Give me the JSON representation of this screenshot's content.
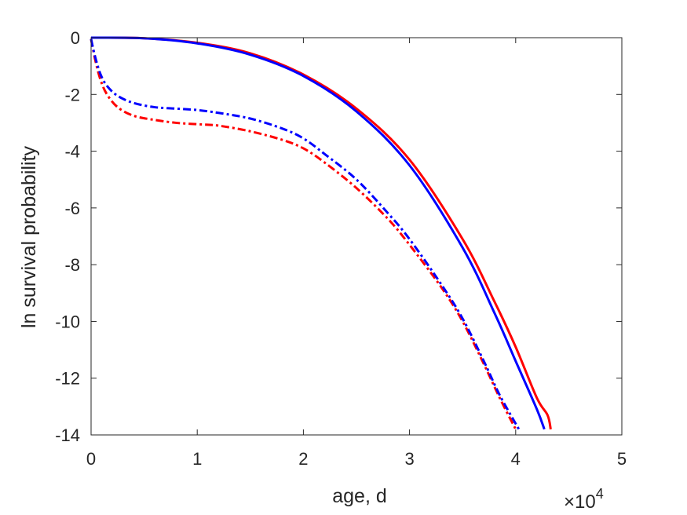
{
  "chart_data": {
    "type": "line",
    "xlabel": "age, d",
    "ylabel": "ln survival probability",
    "x_exponent": {
      "base": "×10",
      "power": "4"
    },
    "xlim": [
      0,
      50000
    ],
    "ylim": [
      -14,
      0
    ],
    "xticks": [
      0,
      10000,
      20000,
      30000,
      40000,
      50000
    ],
    "xtick_labels": [
      "0",
      "1",
      "2",
      "3",
      "4",
      "5"
    ],
    "yticks": [
      0,
      -2,
      -4,
      -6,
      -8,
      -10,
      -12,
      -14
    ],
    "ytick_labels": [
      "0",
      "-2",
      "-4",
      "-6",
      "-8",
      "-10",
      "-12",
      "-14"
    ],
    "grid": false,
    "series": [
      {
        "color": "#ff0000",
        "style": "solid",
        "x": [
          0,
          5000,
          10000,
          15000,
          20000,
          25000,
          30000,
          35000,
          38000,
          40000,
          42000,
          43000,
          43300
        ],
        "y": [
          0,
          -0.02,
          -0.18,
          -0.55,
          -1.3,
          -2.5,
          -4.3,
          -7.1,
          -9.3,
          -10.9,
          -12.7,
          -13.3,
          -13.8
        ]
      },
      {
        "color": "#0000ff",
        "style": "solid",
        "x": [
          0,
          5000,
          10000,
          15000,
          20000,
          25000,
          30000,
          35000,
          38000,
          40000,
          42000,
          42700
        ],
        "y": [
          0,
          -0.02,
          -0.2,
          -0.6,
          -1.35,
          -2.6,
          -4.5,
          -7.4,
          -9.7,
          -11.4,
          -13.1,
          -13.8
        ]
      },
      {
        "color": "#ff0000",
        "style": "dash-dot",
        "x": [
          0,
          400,
          900,
          1500,
          2500,
          4000,
          6000,
          8000,
          10000,
          12000,
          15000,
          18000,
          20000,
          22000,
          25000,
          28000,
          30000,
          33000,
          35000,
          37000,
          38500,
          40000
        ],
        "y": [
          -0.05,
          -0.8,
          -1.5,
          -2.0,
          -2.45,
          -2.75,
          -2.9,
          -3.0,
          -3.05,
          -3.1,
          -3.3,
          -3.6,
          -3.9,
          -4.4,
          -5.3,
          -6.4,
          -7.3,
          -8.8,
          -10.0,
          -11.5,
          -12.7,
          -13.8
        ]
      },
      {
        "color": "#0000ff",
        "style": "dash-dot",
        "x": [
          0,
          400,
          900,
          1500,
          2500,
          4000,
          6000,
          8000,
          10000,
          12000,
          15000,
          18000,
          20000,
          22000,
          25000,
          28000,
          30000,
          33000,
          35000,
          37000,
          38500,
          40300
        ],
        "y": [
          -0.05,
          -0.7,
          -1.3,
          -1.7,
          -2.05,
          -2.3,
          -2.45,
          -2.5,
          -2.55,
          -2.65,
          -2.85,
          -3.2,
          -3.55,
          -4.1,
          -5.0,
          -6.2,
          -7.1,
          -8.7,
          -9.9,
          -11.4,
          -12.6,
          -13.8
        ]
      }
    ]
  }
}
